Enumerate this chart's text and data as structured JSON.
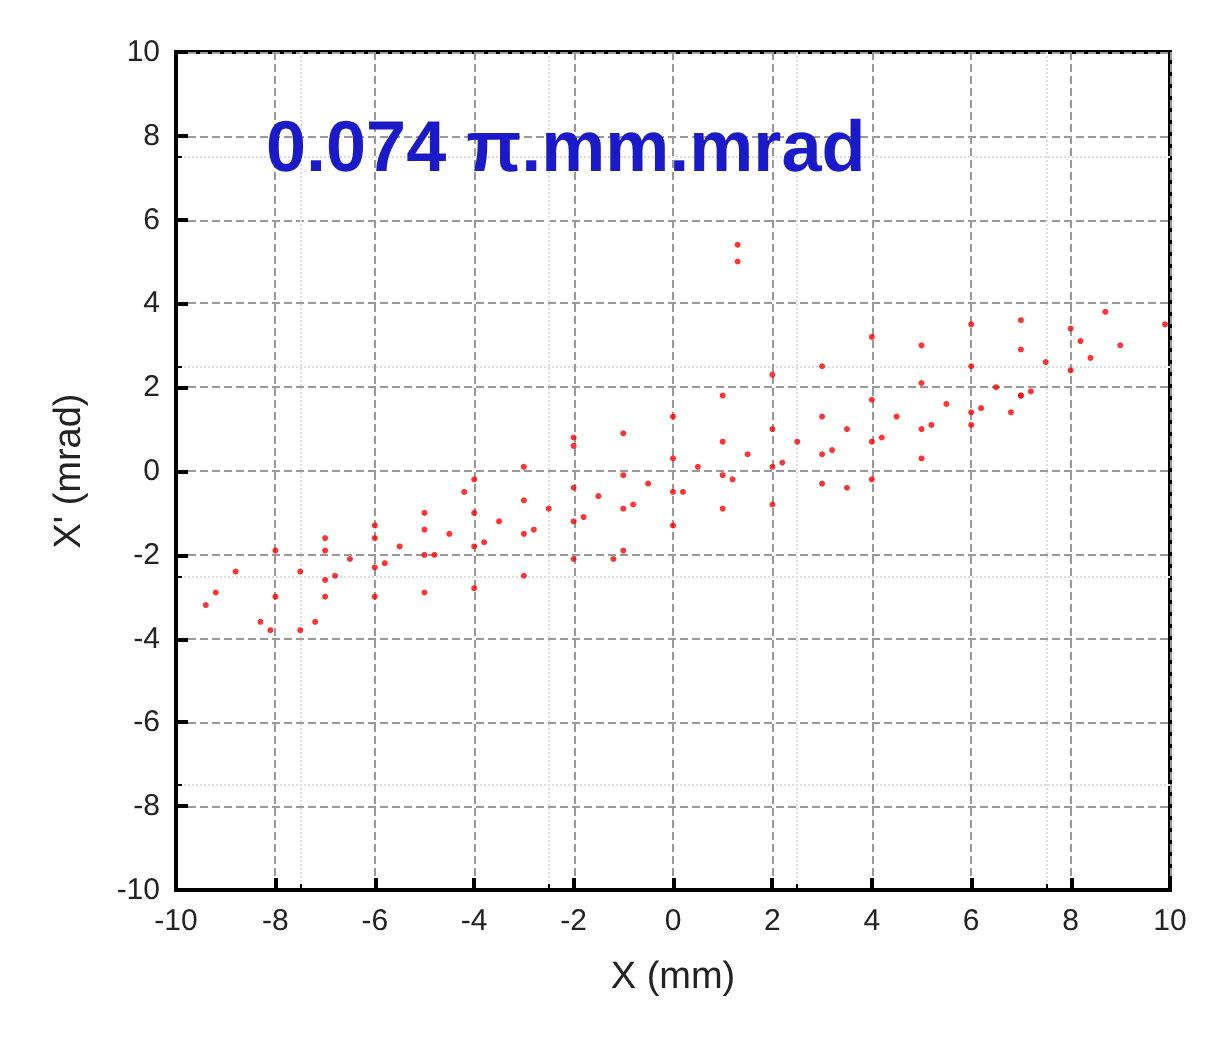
{
  "chart_data": {
    "type": "scatter",
    "title": "0.074 π.mm.mrad",
    "xlabel": "X (mm)",
    "ylabel": "X' (mrad)",
    "xlim": [
      -10,
      10
    ],
    "ylim": [
      -10,
      10
    ],
    "xticks": [
      -10,
      -8,
      -6,
      -4,
      -2,
      0,
      2,
      4,
      6,
      8,
      10
    ],
    "yticks": [
      -10,
      -8,
      -6,
      -4,
      -2,
      0,
      2,
      4,
      6,
      8,
      10
    ],
    "grid": true,
    "marker": "circle",
    "series": [
      {
        "color": "#ff0000",
        "x": [
          1.3,
          1.3,
          9.9,
          9.0,
          8.7,
          8.4,
          8.2,
          -9.4,
          -9.2,
          -8.8,
          -8.3,
          -8.1,
          -7.5,
          -7.2,
          -8,
          -7,
          -6,
          -5,
          -4,
          -3,
          -2,
          -1,
          0,
          1,
          2,
          3,
          4,
          5,
          6,
          7,
          8,
          -8,
          -7,
          -6,
          -5,
          -4,
          -3,
          -2,
          -1,
          0,
          1,
          2,
          3,
          4,
          5,
          6,
          7,
          8,
          -7.5,
          -6.5,
          -5.5,
          -4.5,
          -3.5,
          -2.5,
          -1.5,
          -0.5,
          0.5,
          1.5,
          2.5,
          3.5,
          4.5,
          5.5,
          6.5,
          7.5,
          -7,
          -6,
          -5,
          -4,
          -3,
          -2,
          -1,
          0,
          1,
          2,
          3,
          4,
          5,
          6,
          7,
          -7,
          -6,
          -5,
          -4,
          -3,
          -2,
          -1,
          0,
          1,
          2,
          3,
          4,
          5,
          6,
          7,
          -6.8,
          -5.8,
          -4.8,
          -3.8,
          -2.8,
          -1.8,
          -0.8,
          0.2,
          1.2,
          2.2,
          3.2,
          4.2,
          5.2,
          6.2,
          7.2,
          -4.2,
          -1.2,
          -2.0,
          6.8,
          3.5
        ],
        "values": [
          5.4,
          5.0,
          3.5,
          3.0,
          3.8,
          2.7,
          3.1,
          -3.2,
          -2.9,
          -2.4,
          -3.6,
          -3.8,
          -3.8,
          -3.6,
          -1.9,
          -1.6,
          -1.3,
          -1.0,
          -0.2,
          0.1,
          0.6,
          0.9,
          1.3,
          1.8,
          2.3,
          2.5,
          3.2,
          3.0,
          3.5,
          3.6,
          3.4,
          -3.0,
          -3.0,
          -3.0,
          -2.9,
          -2.8,
          -2.5,
          -2.1,
          -1.9,
          -1.3,
          -0.9,
          -0.8,
          -0.3,
          -0.2,
          0.3,
          1.1,
          1.8,
          2.4,
          -2.4,
          -2.1,
          -1.8,
          -1.5,
          -1.2,
          -0.9,
          -0.6,
          -0.3,
          0.1,
          0.4,
          0.7,
          1.0,
          1.3,
          1.6,
          2.0,
          2.6,
          -2.6,
          -2.3,
          -2.0,
          -1.8,
          -1.5,
          -1.2,
          -0.9,
          -0.5,
          -0.1,
          0.1,
          0.4,
          0.7,
          1.0,
          1.4,
          1.8,
          -1.9,
          -1.6,
          -1.4,
          -1.0,
          -0.7,
          -0.4,
          -0.1,
          0.3,
          0.7,
          1.0,
          1.3,
          1.7,
          2.1,
          2.5,
          2.9,
          -2.5,
          -2.2,
          -2.0,
          -1.7,
          -1.4,
          -1.1,
          -0.8,
          -0.5,
          -0.2,
          0.2,
          0.5,
          0.8,
          1.1,
          1.5,
          1.9,
          -0.5,
          -2.1,
          0.8,
          1.4,
          -0.4
        ]
      }
    ]
  }
}
